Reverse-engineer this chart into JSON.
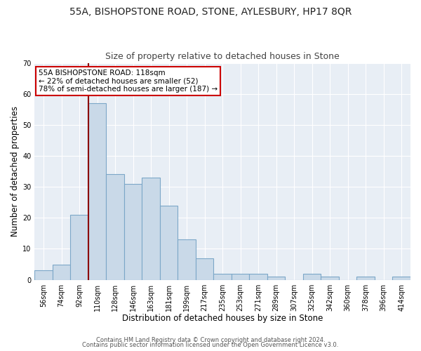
{
  "title": "55A, BISHOPSTONE ROAD, STONE, AYLESBURY, HP17 8QR",
  "subtitle": "Size of property relative to detached houses in Stone",
  "xlabel": "Distribution of detached houses by size in Stone",
  "ylabel": "Number of detached properties",
  "bin_labels": [
    "56sqm",
    "74sqm",
    "92sqm",
    "110sqm",
    "128sqm",
    "146sqm",
    "163sqm",
    "181sqm",
    "199sqm",
    "217sqm",
    "235sqm",
    "253sqm",
    "271sqm",
    "289sqm",
    "307sqm",
    "325sqm",
    "342sqm",
    "360sqm",
    "378sqm",
    "396sqm",
    "414sqm"
  ],
  "bar_heights": [
    3,
    5,
    21,
    57,
    34,
    31,
    33,
    24,
    13,
    7,
    2,
    2,
    2,
    1,
    0,
    2,
    1,
    0,
    1,
    0,
    1
  ],
  "bar_color": "#c9d9e8",
  "bar_edge_color": "#7ca7c8",
  "bar_edge_width": 0.8,
  "marker_bin_index": 3,
  "marker_color": "#8b0000",
  "annotation_text": "55A BISHOPSTONE ROAD: 118sqm\n← 22% of detached houses are smaller (52)\n78% of semi-detached houses are larger (187) →",
  "annotation_box_edge_color": "#cc0000",
  "ylim": [
    0,
    70
  ],
  "yticks": [
    0,
    10,
    20,
    30,
    40,
    50,
    60,
    70
  ],
  "plot_bg_color": "#e8eef5",
  "footer_line1": "Contains HM Land Registry data © Crown copyright and database right 2024.",
  "footer_line2": "Contains public sector information licensed under the Open Government Licence v3.0.",
  "title_fontsize": 10,
  "subtitle_fontsize": 9,
  "axis_label_fontsize": 8.5,
  "tick_fontsize": 7,
  "annotation_fontsize": 7.5,
  "footer_fontsize": 6
}
